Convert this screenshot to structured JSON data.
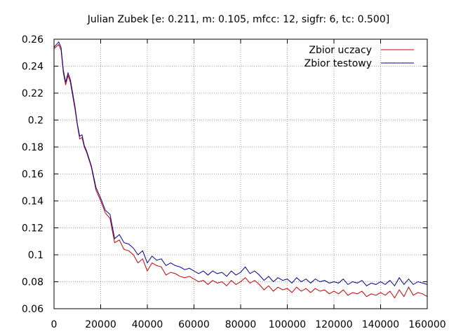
{
  "chart_data": {
    "type": "line",
    "title": "Julian Zubek [e: 0.211, m: 0.105, mfcc: 12, sigfr: 6, tc: 0.500]",
    "xlabel": "",
    "ylabel": "",
    "xlim": [
      0,
      160000
    ],
    "ylim": [
      0.06,
      0.26
    ],
    "x_ticks": [
      0,
      20000,
      40000,
      60000,
      80000,
      100000,
      120000,
      140000,
      160000
    ],
    "y_ticks": [
      0.06,
      0.08,
      0.1,
      0.12,
      0.14,
      0.16,
      0.18,
      0.2,
      0.22,
      0.24,
      0.26
    ],
    "x_tick_labels": [
      "0",
      "20000",
      "40000",
      "60000",
      "80000",
      "100000",
      "120000",
      "140000",
      "160000"
    ],
    "y_tick_labels": [
      "0.06",
      "0.08",
      "0.1",
      "0.12",
      "0.14",
      "0.16",
      "0.18",
      "0.2",
      "0.22",
      "0.24",
      "0.26"
    ],
    "grid": true,
    "legend_position": "top-right",
    "series": [
      {
        "name": "Zbior uczacy",
        "color": "#cc0000",
        "x": [
          0,
          2000,
          3000,
          4000,
          5000,
          6000,
          7000,
          8000,
          9000,
          10000,
          11000,
          12000,
          13000,
          14000,
          16000,
          18000,
          20000,
          22000,
          24000,
          26000,
          28000,
          30000,
          32000,
          34000,
          36000,
          38000,
          40000,
          42000,
          44000,
          46000,
          48000,
          50000,
          52000,
          54000,
          56000,
          58000,
          60000,
          62000,
          64000,
          66000,
          68000,
          70000,
          72000,
          74000,
          76000,
          78000,
          80000,
          82000,
          84000,
          86000,
          88000,
          90000,
          92000,
          94000,
          96000,
          98000,
          100000,
          102000,
          104000,
          106000,
          108000,
          110000,
          112000,
          114000,
          116000,
          118000,
          120000,
          122000,
          124000,
          126000,
          128000,
          130000,
          132000,
          134000,
          136000,
          138000,
          140000,
          142000,
          144000,
          146000,
          148000,
          150000,
          152000,
          154000,
          156000,
          158000,
          160000
        ],
        "y": [
          0.253,
          0.256,
          0.252,
          0.235,
          0.226,
          0.233,
          0.228,
          0.218,
          0.208,
          0.196,
          0.186,
          0.187,
          0.18,
          0.176,
          0.165,
          0.148,
          0.14,
          0.131,
          0.127,
          0.109,
          0.111,
          0.104,
          0.103,
          0.1,
          0.094,
          0.097,
          0.088,
          0.094,
          0.092,
          0.091,
          0.085,
          0.087,
          0.086,
          0.084,
          0.083,
          0.084,
          0.082,
          0.08,
          0.081,
          0.078,
          0.081,
          0.079,
          0.08,
          0.077,
          0.081,
          0.078,
          0.08,
          0.083,
          0.079,
          0.081,
          0.078,
          0.074,
          0.077,
          0.073,
          0.076,
          0.074,
          0.075,
          0.072,
          0.076,
          0.073,
          0.075,
          0.072,
          0.075,
          0.073,
          0.074,
          0.071,
          0.073,
          0.071,
          0.074,
          0.07,
          0.072,
          0.071,
          0.073,
          0.069,
          0.071,
          0.07,
          0.072,
          0.07,
          0.073,
          0.068,
          0.074,
          0.069,
          0.076,
          0.07,
          0.072,
          0.071,
          0.069
        ]
      },
      {
        "name": "Zbior testowy",
        "color": "#000099",
        "x": [
          0,
          2000,
          3000,
          4000,
          5000,
          6000,
          7000,
          8000,
          9000,
          10000,
          11000,
          12000,
          13000,
          14000,
          16000,
          18000,
          20000,
          22000,
          24000,
          26000,
          28000,
          30000,
          32000,
          34000,
          36000,
          38000,
          40000,
          42000,
          44000,
          46000,
          48000,
          50000,
          52000,
          54000,
          56000,
          58000,
          60000,
          62000,
          64000,
          66000,
          68000,
          70000,
          72000,
          74000,
          76000,
          78000,
          80000,
          82000,
          84000,
          86000,
          88000,
          90000,
          92000,
          94000,
          96000,
          98000,
          100000,
          102000,
          104000,
          106000,
          108000,
          110000,
          112000,
          114000,
          116000,
          118000,
          120000,
          122000,
          124000,
          126000,
          128000,
          130000,
          132000,
          134000,
          136000,
          138000,
          140000,
          142000,
          144000,
          146000,
          148000,
          150000,
          152000,
          154000,
          156000,
          158000,
          160000
        ],
        "y": [
          0.254,
          0.258,
          0.254,
          0.237,
          0.228,
          0.235,
          0.23,
          0.22,
          0.21,
          0.197,
          0.188,
          0.189,
          0.181,
          0.177,
          0.166,
          0.15,
          0.142,
          0.133,
          0.13,
          0.112,
          0.115,
          0.109,
          0.108,
          0.105,
          0.1,
          0.103,
          0.094,
          0.099,
          0.096,
          0.097,
          0.092,
          0.094,
          0.092,
          0.091,
          0.089,
          0.09,
          0.088,
          0.086,
          0.088,
          0.085,
          0.088,
          0.086,
          0.087,
          0.084,
          0.088,
          0.085,
          0.087,
          0.091,
          0.086,
          0.088,
          0.085,
          0.081,
          0.084,
          0.08,
          0.083,
          0.081,
          0.082,
          0.079,
          0.083,
          0.08,
          0.082,
          0.079,
          0.082,
          0.08,
          0.081,
          0.079,
          0.08,
          0.079,
          0.082,
          0.078,
          0.08,
          0.079,
          0.081,
          0.077,
          0.079,
          0.078,
          0.08,
          0.078,
          0.081,
          0.077,
          0.083,
          0.078,
          0.082,
          0.078,
          0.08,
          0.079,
          0.078
        ]
      }
    ]
  }
}
